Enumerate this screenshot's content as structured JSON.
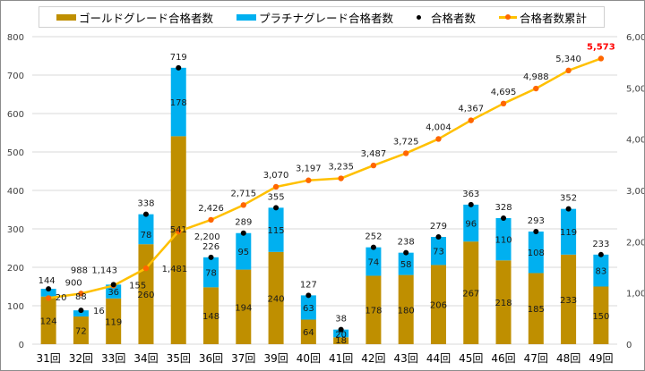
{
  "chart_data": {
    "type": "bar",
    "subtype": "stacked bar with line on secondary axis",
    "title": "",
    "xlabel": "",
    "ylabel": "",
    "categories": [
      "31回",
      "32回",
      "33回",
      "34回",
      "35回",
      "36回",
      "37回",
      "39回",
      "40回",
      "41回",
      "42回",
      "43回",
      "44回",
      "45回",
      "46回",
      "47回",
      "48回",
      "49回"
    ],
    "series": [
      {
        "name": "ゴールドグレード合格者数",
        "type": "bar",
        "axis": "left",
        "color": "#bf8f00",
        "values": [
          124,
          72,
          119,
          260,
          541,
          148,
          194,
          240,
          64,
          18,
          178,
          180,
          206,
          267,
          218,
          185,
          233,
          150
        ]
      },
      {
        "name": "プラチナグレード合格者数",
        "type": "bar",
        "axis": "left",
        "color": "#00b0f0",
        "values": [
          20,
          16,
          36,
          78,
          178,
          78,
          95,
          115,
          63,
          20,
          74,
          58,
          73,
          96,
          110,
          108,
          119,
          83
        ]
      },
      {
        "name": "合格者数",
        "type": "scatter",
        "axis": "left",
        "color": "#000000",
        "values": [
          144,
          88,
          155,
          338,
          719,
          226,
          289,
          355,
          127,
          38,
          252,
          238,
          279,
          363,
          328,
          293,
          352,
          233
        ]
      },
      {
        "name": "合格者数累計",
        "type": "line",
        "axis": "right",
        "color": "#ffc000",
        "marker_color": "#ff6600",
        "values": [
          900,
          988,
          1143,
          1481,
          2200,
          2426,
          2715,
          3070,
          3197,
          3235,
          3487,
          3725,
          4004,
          4367,
          4695,
          4988,
          5340,
          5573
        ],
        "labels": [
          "900",
          "988",
          "1,143",
          "1,481",
          "2,200",
          "2,426",
          "2,715",
          "3,070",
          "3,197",
          "3,235",
          "3,487",
          "3,725",
          "4,004",
          "4,367",
          "4,695",
          "4,988",
          "5,340",
          "5,573"
        ],
        "highlight_last_color": "#ff0000"
      }
    ],
    "ylim": [
      0,
      800
    ],
    "y_ticks": [
      0,
      100,
      200,
      300,
      400,
      500,
      600,
      700,
      800
    ],
    "y2lim": [
      0,
      6000
    ],
    "y2_ticks": [
      "0",
      "1,000",
      "2,000",
      "3,000",
      "4,000",
      "5,000",
      "6,000"
    ],
    "grid": true,
    "legend": "top"
  },
  "legend": [
    {
      "label": "ゴールドグレード合格者数",
      "kind": "bar",
      "color": "#bf8f00"
    },
    {
      "label": "プラチナグレード合格者数",
      "kind": "bar",
      "color": "#00b0f0"
    },
    {
      "label": "合格者数",
      "kind": "dot"
    },
    {
      "label": "合格者数累計",
      "kind": "line"
    }
  ]
}
